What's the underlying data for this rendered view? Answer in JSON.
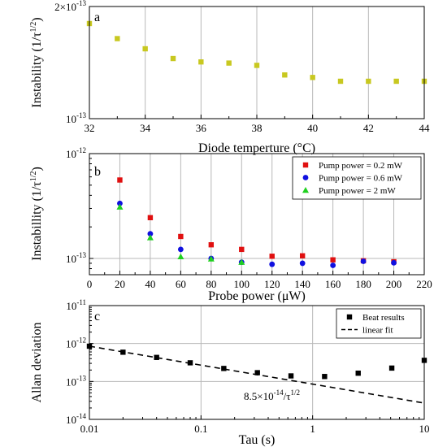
{
  "chart_data": [
    {
      "type": "scatter",
      "panel_label": "a",
      "xlabel": "Diode temperture (°C)",
      "ylabel": "Instability (1/τ^1/2)",
      "x_scale": "linear",
      "y_scale": "log",
      "xlim": [
        32,
        44
      ],
      "ylim": [
        1e-13,
        2e-13
      ],
      "x_ticks": [
        32,
        34,
        36,
        38,
        40,
        42,
        44
      ],
      "y_tick_labels": [
        "10^-13",
        "2×10^-13"
      ],
      "grid": "vertical",
      "series": [
        {
          "color": "#c8c820",
          "marker": "square",
          "x": [
            32,
            33,
            34,
            35,
            36,
            37,
            38,
            39,
            40,
            41,
            42,
            43,
            44
          ],
          "y": [
            1.8e-13,
            1.64e-13,
            1.54e-13,
            1.45e-13,
            1.42e-13,
            1.41e-13,
            1.39e-13,
            1.31e-13,
            1.29e-13,
            1.26e-13,
            1.26e-13,
            1.26e-13,
            1.26e-13
          ]
        }
      ]
    },
    {
      "type": "scatter",
      "panel_label": "b",
      "xlabel": "Probe power (μW)",
      "ylabel": "Instabillity (1/τ^1/2)",
      "x_scale": "linear",
      "y_scale": "log",
      "xlim": [
        0,
        220
      ],
      "ylim": [
        7e-14,
        1e-12
      ],
      "x_ticks": [
        0,
        20,
        40,
        60,
        80,
        100,
        120,
        140,
        160,
        180,
        200,
        220
      ],
      "y_tick_labels": [
        "10^-13",
        "10^-12"
      ],
      "grid": "both",
      "legend_position": "top-right",
      "series": [
        {
          "name": "Pump power = 0.2 mW",
          "color": "#e01010",
          "marker": "square",
          "x": [
            20,
            40,
            60,
            80,
            100,
            120,
            140,
            160,
            180,
            200
          ],
          "y": [
            5.6e-13,
            2.45e-13,
            1.62e-13,
            1.35e-13,
            1.22e-13,
            1.05e-13,
            1.06e-13,
            9.7e-14,
            9.5e-14,
            9.3e-14
          ]
        },
        {
          "name": "Pump power = 0.6 mW",
          "color": "#1010e0",
          "marker": "circle",
          "x": [
            20,
            40,
            60,
            80,
            100,
            120,
            140,
            160,
            180,
            200
          ],
          "y": [
            3.35e-13,
            1.72e-13,
            1.22e-13,
            1e-13,
            9.2e-14,
            8.8e-14,
            9e-14,
            8.6e-14,
            9.4e-14,
            9.1e-14
          ]
        },
        {
          "name": "Pump power = 2 mW",
          "color": "#20d020",
          "marker": "triangle",
          "x": [
            20,
            40,
            60,
            80,
            100
          ],
          "y": [
            3.1e-13,
            1.58e-13,
            1.04e-13,
            9.9e-14,
            9.2e-14
          ]
        }
      ]
    },
    {
      "type": "scatter",
      "panel_label": "c",
      "xlabel": "Tau (s)",
      "ylabel": "Allan deviation",
      "x_scale": "log",
      "y_scale": "log",
      "xlim": [
        0.01,
        10
      ],
      "ylim": [
        1e-14,
        1e-11
      ],
      "x_tick_labels": [
        "0.01",
        "0.1",
        "1",
        "10"
      ],
      "y_tick_labels": [
        "10^-14",
        "10^-13",
        "10^-12",
        "10^-11"
      ],
      "grid": "both",
      "legend_position": "top-right",
      "annotation": "8.5×10^-14/τ^1/2",
      "series": [
        {
          "name": "Beat results",
          "color": "#000000",
          "marker": "square",
          "x": [
            0.01,
            0.02,
            0.04,
            0.08,
            0.16,
            0.32,
            0.64,
            1.28,
            2.56,
            5.12,
            10
          ],
          "y": [
            8.5e-13,
            5.9e-13,
            4.3e-13,
            3.1e-13,
            2.2e-13,
            1.7e-13,
            1.4e-13,
            1.35e-13,
            1.65e-13,
            2.25e-13,
            3.6e-13
          ]
        },
        {
          "name": "linear fit",
          "color": "#000000",
          "line_style": "dashed",
          "x": [
            0.01,
            10
          ],
          "y": [
            8.5e-13,
            2.69e-14
          ]
        }
      ]
    }
  ]
}
